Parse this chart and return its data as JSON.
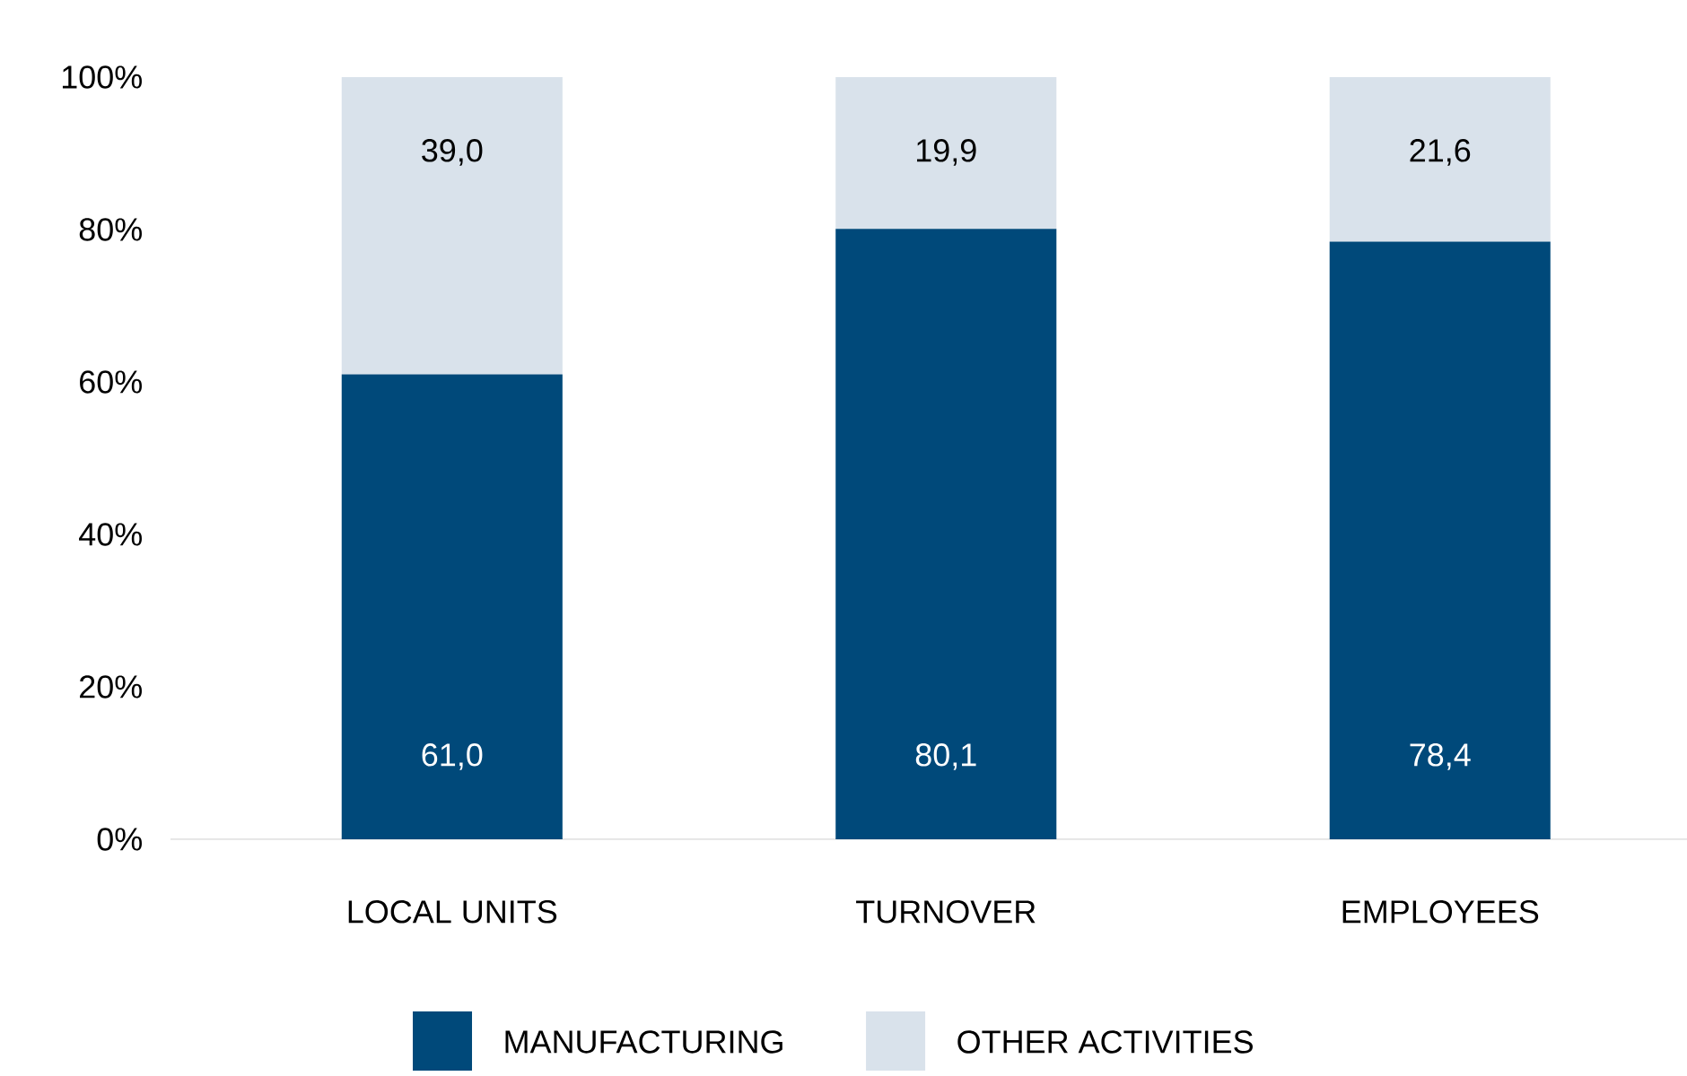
{
  "chart_data": {
    "type": "bar",
    "stacked": true,
    "categories": [
      "LOCAL UNITS",
      "TURNOVER",
      "EMPLOYEES"
    ],
    "series": [
      {
        "name": "MANUFACTURING",
        "color": "#00497a",
        "values": [
          61.0,
          80.1,
          78.4
        ],
        "value_labels": [
          "61,0",
          "80,1",
          "78,4"
        ]
      },
      {
        "name": "OTHER ACTIVITIES",
        "color": "#d9e2eb",
        "values": [
          39.0,
          19.9,
          21.6
        ],
        "value_labels": [
          "39,0",
          "19,9",
          "21,6"
        ]
      }
    ],
    "ylim": [
      0,
      100
    ],
    "yticks": [
      {
        "value": 0,
        "label": "0%"
      },
      {
        "value": 20,
        "label": "20%"
      },
      {
        "value": 40,
        "label": "40%"
      },
      {
        "value": 60,
        "label": "60%"
      },
      {
        "value": 80,
        "label": "80%"
      },
      {
        "value": 100,
        "label": "100%"
      }
    ],
    "legend": "bottom"
  }
}
